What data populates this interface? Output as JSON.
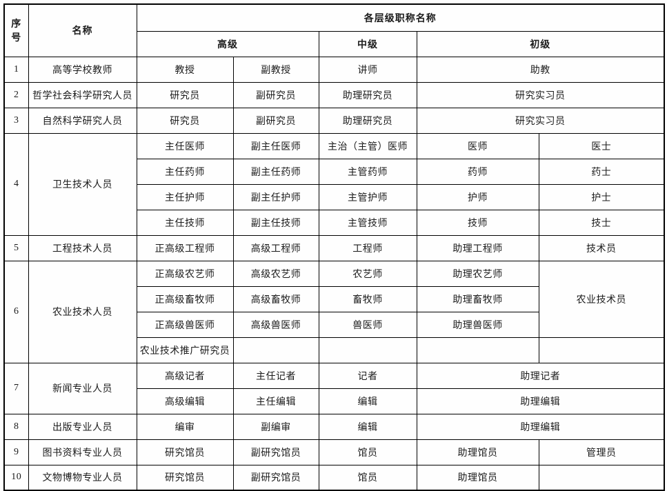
{
  "page": {
    "background_color": "#fdfdfd",
    "border_color": "#000000",
    "text_color": "#1b1b1b"
  },
  "table": {
    "header_rows": [
      [
        {
          "t": "序号",
          "rs": 2,
          "n": "column-header-serial"
        },
        {
          "t": "名称",
          "rs": 2,
          "n": "column-header-name"
        },
        {
          "t": "各层级职称名称",
          "cs": 5,
          "n": "column-header-group"
        }
      ],
      [
        {
          "t": "高级",
          "cs": 2,
          "n": "column-header-senior"
        },
        {
          "t": "中级",
          "n": "column-header-intermediate"
        },
        {
          "t": "初级",
          "cs": 2,
          "n": "column-header-junior"
        }
      ]
    ],
    "body_rows": [
      [
        {
          "t": "1",
          "n": "row-number"
        },
        {
          "t": "高等学校教师",
          "n": "category-name"
        },
        {
          "t": "教授"
        },
        {
          "t": "副教授"
        },
        {
          "t": "讲师"
        },
        {
          "t": "助教",
          "cs": 2
        }
      ],
      [
        {
          "t": "2",
          "n": "row-number"
        },
        {
          "t": "哲学社会科学研究人员",
          "n": "category-name"
        },
        {
          "t": "研究员"
        },
        {
          "t": "副研究员"
        },
        {
          "t": "助理研究员"
        },
        {
          "t": "研究实习员",
          "cs": 2
        }
      ],
      [
        {
          "t": "3",
          "n": "row-number"
        },
        {
          "t": "自然科学研究人员",
          "n": "category-name"
        },
        {
          "t": "研究员"
        },
        {
          "t": "副研究员"
        },
        {
          "t": "助理研究员"
        },
        {
          "t": "研究实习员",
          "cs": 2
        }
      ],
      [
        {
          "t": "4",
          "rs": 4,
          "n": "row-number"
        },
        {
          "t": "卫生技术人员",
          "rs": 4,
          "n": "category-name"
        },
        {
          "t": "主任医师"
        },
        {
          "t": "副主任医师"
        },
        {
          "t": "主治（主管）医师"
        },
        {
          "t": "医师"
        },
        {
          "t": "医士"
        }
      ],
      [
        {
          "t": "主任药师"
        },
        {
          "t": "副主任药师"
        },
        {
          "t": "主管药师"
        },
        {
          "t": "药师"
        },
        {
          "t": "药士"
        }
      ],
      [
        {
          "t": "主任护师"
        },
        {
          "t": "副主任护师"
        },
        {
          "t": "主管护师"
        },
        {
          "t": "护师"
        },
        {
          "t": "护士"
        }
      ],
      [
        {
          "t": "主任技师"
        },
        {
          "t": "副主任技师"
        },
        {
          "t": "主管技师"
        },
        {
          "t": "技师"
        },
        {
          "t": "技士"
        }
      ],
      [
        {
          "t": "5",
          "n": "row-number"
        },
        {
          "t": "工程技术人员",
          "n": "category-name"
        },
        {
          "t": "正高级工程师"
        },
        {
          "t": "高级工程师"
        },
        {
          "t": "工程师"
        },
        {
          "t": "助理工程师"
        },
        {
          "t": "技术员"
        }
      ],
      [
        {
          "t": "6",
          "rs": 4,
          "n": "row-number"
        },
        {
          "t": "农业技术人员",
          "rs": 4,
          "n": "category-name"
        },
        {
          "t": "正高级农艺师"
        },
        {
          "t": "高级农艺师"
        },
        {
          "t": "农艺师"
        },
        {
          "t": "助理农艺师"
        },
        {
          "t": "农业技术员",
          "rs": 3
        }
      ],
      [
        {
          "t": "正高级畜牧师"
        },
        {
          "t": "高级畜牧师"
        },
        {
          "t": "畜牧师"
        },
        {
          "t": "助理畜牧师"
        }
      ],
      [
        {
          "t": "正高级兽医师"
        },
        {
          "t": "高级兽医师"
        },
        {
          "t": "兽医师"
        },
        {
          "t": "助理兽医师"
        }
      ],
      [
        {
          "t": "农业技术推广研究员"
        },
        {
          "t": ""
        },
        {
          "t": ""
        },
        {
          "t": ""
        },
        {
          "t": ""
        }
      ],
      [
        {
          "t": "7",
          "rs": 2,
          "n": "row-number"
        },
        {
          "t": "新闻专业人员",
          "rs": 2,
          "n": "category-name"
        },
        {
          "t": "高级记者"
        },
        {
          "t": "主任记者"
        },
        {
          "t": "记者"
        },
        {
          "t": "助理记者",
          "cs": 2
        }
      ],
      [
        {
          "t": "高级编辑"
        },
        {
          "t": "主任编辑"
        },
        {
          "t": "编辑"
        },
        {
          "t": "助理编辑",
          "cs": 2
        }
      ],
      [
        {
          "t": "8",
          "n": "row-number"
        },
        {
          "t": "出版专业人员",
          "n": "category-name"
        },
        {
          "t": "编审"
        },
        {
          "t": "副编审"
        },
        {
          "t": "编辑"
        },
        {
          "t": "助理编辑",
          "cs": 2
        }
      ],
      [
        {
          "t": "9",
          "n": "row-number"
        },
        {
          "t": "图书资料专业人员",
          "n": "category-name"
        },
        {
          "t": "研究馆员"
        },
        {
          "t": "副研究馆员"
        },
        {
          "t": "馆员"
        },
        {
          "t": "助理馆员"
        },
        {
          "t": "管理员"
        }
      ],
      [
        {
          "t": "10",
          "n": "row-number"
        },
        {
          "t": "文物博物专业人员",
          "n": "category-name"
        },
        {
          "t": "研究馆员"
        },
        {
          "t": "副研究馆员"
        },
        {
          "t": "馆员"
        },
        {
          "t": "助理馆员"
        },
        {
          "t": ""
        }
      ]
    ]
  }
}
